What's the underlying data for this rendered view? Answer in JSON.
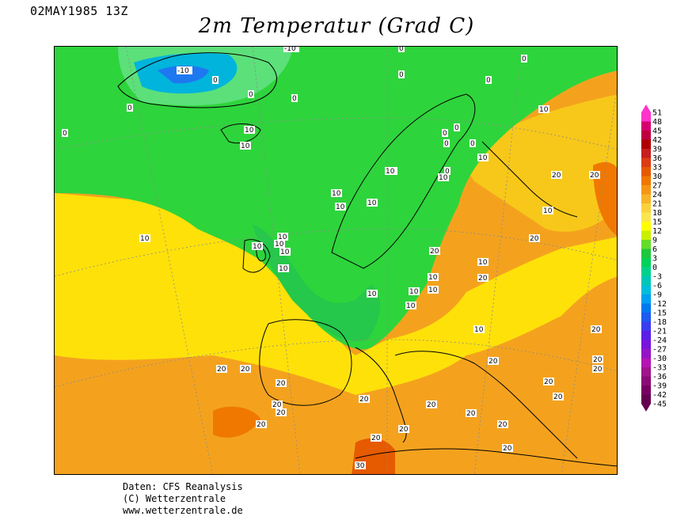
{
  "header": {
    "datetime": "02MAY1985 13Z",
    "title": "2m Temperatur (Grad C)"
  },
  "credits": {
    "line1": "Daten: CFS Reanalysis",
    "line2": "(C) Wetterzentrale",
    "line3": "www.wetterzentrale.de"
  },
  "legend": {
    "ticks": [
      "51",
      "48",
      "45",
      "42",
      "39",
      "36",
      "33",
      "30",
      "27",
      "24",
      "21",
      "18",
      "15",
      "12",
      "9",
      "6",
      "3",
      "0",
      "-3",
      "-6",
      "-9",
      "-12",
      "-15",
      "-18",
      "-21",
      "-24",
      "-27",
      "-30",
      "-33",
      "-36",
      "-39",
      "-42",
      "-45"
    ],
    "colors": [
      "#ff33cc",
      "#d6006e",
      "#c00040",
      "#b00000",
      "#c81e1e",
      "#dc3c14",
      "#e65a00",
      "#f07800",
      "#f49614",
      "#f8b428",
      "#fad23c",
      "#fae650",
      "#ffff00",
      "#c8f000",
      "#64dc28",
      "#1ec83c",
      "#00d25a",
      "#00d28c",
      "#00c8b4",
      "#00bedc",
      "#00a0f0",
      "#0078f0",
      "#1e5af0",
      "#3c3cf0",
      "#5a1ee6",
      "#7814dc",
      "#9614c8",
      "#b414b4",
      "#a0148c",
      "#8c0a78",
      "#780064",
      "#640050"
    ]
  },
  "isotherm_labels": [
    {
      "text": "-10"
    },
    {
      "text": "-10"
    },
    {
      "text": "0"
    },
    {
      "text": "0"
    },
    {
      "text": "0"
    },
    {
      "text": "0"
    },
    {
      "text": "0"
    },
    {
      "text": "0"
    },
    {
      "text": "0"
    },
    {
      "text": "0"
    },
    {
      "text": "0"
    },
    {
      "text": "0"
    },
    {
      "text": "0"
    },
    {
      "text": "0"
    },
    {
      "text": "0"
    },
    {
      "text": "10"
    },
    {
      "text": "0"
    },
    {
      "text": "10"
    },
    {
      "text": "10"
    },
    {
      "text": "10"
    },
    {
      "text": "10"
    },
    {
      "text": "10"
    },
    {
      "text": "10"
    },
    {
      "text": "10"
    },
    {
      "text": "10"
    },
    {
      "text": "10"
    },
    {
      "text": "10"
    },
    {
      "text": "10"
    },
    {
      "text": "10"
    },
    {
      "text": "10"
    },
    {
      "text": "10"
    },
    {
      "text": "10"
    },
    {
      "text": "10"
    },
    {
      "text": "10"
    },
    {
      "text": "10"
    },
    {
      "text": "10"
    },
    {
      "text": "10"
    },
    {
      "text": "10"
    },
    {
      "text": "10"
    },
    {
      "text": "20"
    },
    {
      "text": "20"
    },
    {
      "text": "20"
    },
    {
      "text": "20"
    },
    {
      "text": "20"
    },
    {
      "text": "20"
    },
    {
      "text": "20"
    },
    {
      "text": "20"
    },
    {
      "text": "20"
    },
    {
      "text": "20"
    },
    {
      "text": "20"
    },
    {
      "text": "20"
    },
    {
      "text": "20"
    },
    {
      "text": "20"
    },
    {
      "text": "20"
    },
    {
      "text": "20"
    },
    {
      "text": "20"
    },
    {
      "text": "20"
    },
    {
      "text": "20"
    },
    {
      "text": "20"
    },
    {
      "text": "30"
    },
    {
      "text": "20"
    },
    {
      "text": "20"
    },
    {
      "text": "10"
    },
    {
      "text": "20"
    },
    {
      "text": "20"
    }
  ]
}
